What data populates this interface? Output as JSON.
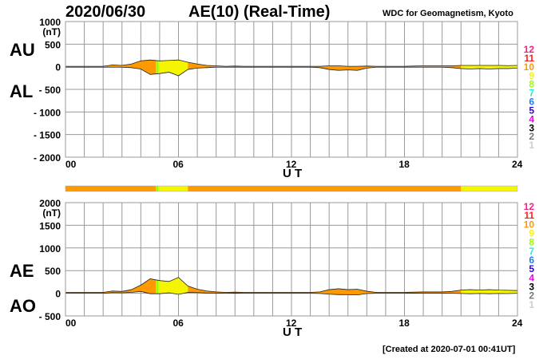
{
  "header": {
    "date": "2020/06/30",
    "title": "AE(10) (Real-Time)",
    "source": "WDC for Geomagnetism, Kyoto"
  },
  "footer": {
    "created": "[Created at 2020-07-01 00:41UT]"
  },
  "legend_levels": [
    {
      "label": "12",
      "color": "#ff1a8c"
    },
    {
      "label": "11",
      "color": "#ff2020"
    },
    {
      "label": "10",
      "color": "#ff9900"
    },
    {
      "label": "9",
      "color": "#f5f500"
    },
    {
      "label": "8",
      "color": "#99ff00"
    },
    {
      "label": "7",
      "color": "#22eedd"
    },
    {
      "label": "6",
      "color": "#1a80ff"
    },
    {
      "label": "5",
      "color": "#3300ee"
    },
    {
      "label": "4",
      "color": "#ee00ee"
    },
    {
      "label": "3",
      "color": "#000000"
    },
    {
      "label": "2",
      "color": "#777777"
    },
    {
      "label": "1",
      "color": "#cccccc"
    }
  ],
  "chart_data": [
    {
      "type": "area",
      "title": "AU / AL",
      "series_labels": [
        "AU",
        "AL"
      ],
      "xlabel": "U T",
      "ylabel": "(nT)",
      "xlim": [
        0,
        24
      ],
      "ylim": [
        -2000,
        1000
      ],
      "xticks": [
        "00",
        "06",
        "12",
        "18",
        "24"
      ],
      "yticks": [
        "1000",
        "500",
        "0",
        "- 500",
        "- 1000",
        "- 1500",
        "- 2000"
      ],
      "grid": true,
      "x_step_hours": 0.5,
      "series": [
        {
          "name": "AU",
          "values": [
            10,
            10,
            10,
            10,
            10,
            40,
            30,
            60,
            130,
            150,
            130,
            140,
            150,
            100,
            60,
            30,
            20,
            10,
            15,
            10,
            10,
            10,
            10,
            10,
            10,
            10,
            10,
            10,
            20,
            20,
            10,
            10,
            15,
            10,
            10,
            10,
            10,
            15,
            20,
            20,
            20,
            20,
            30,
            30,
            30,
            30,
            30,
            25,
            30
          ]
        },
        {
          "name": "AL",
          "values": [
            -10,
            -10,
            -10,
            -10,
            -10,
            -10,
            -10,
            -20,
            -50,
            -170,
            -150,
            -120,
            -200,
            -60,
            -30,
            -20,
            -10,
            -10,
            -10,
            -10,
            -10,
            -10,
            -10,
            -10,
            -10,
            -10,
            -10,
            -20,
            -60,
            -80,
            -70,
            -80,
            -30,
            -10,
            -10,
            -10,
            -10,
            -10,
            -10,
            -10,
            -10,
            -20,
            -40,
            -50,
            -40,
            -50,
            -40,
            -40,
            -30
          ]
        }
      ]
    },
    {
      "type": "area",
      "title": "AE / AO",
      "series_labels": [
        "AE",
        "AO"
      ],
      "xlabel": "U T",
      "ylabel": "(nT)",
      "xlim": [
        0,
        24
      ],
      "ylim": [
        -500,
        2000
      ],
      "xticks": [
        "00",
        "06",
        "12",
        "18",
        "24"
      ],
      "yticks": [
        "2000",
        "1500",
        "1000",
        "500",
        "0",
        "- 500"
      ],
      "grid": true,
      "x_step_hours": 0.5,
      "series": [
        {
          "name": "AE",
          "values": [
            20,
            20,
            20,
            20,
            20,
            50,
            40,
            80,
            180,
            320,
            280,
            260,
            350,
            160,
            90,
            50,
            30,
            20,
            25,
            20,
            20,
            20,
            20,
            20,
            20,
            20,
            20,
            30,
            80,
            100,
            80,
            90,
            45,
            20,
            20,
            20,
            20,
            25,
            30,
            30,
            30,
            40,
            70,
            80,
            70,
            80,
            70,
            65,
            60
          ]
        },
        {
          "name": "AO",
          "values": [
            0,
            0,
            0,
            0,
            0,
            15,
            10,
            20,
            40,
            -10,
            -10,
            10,
            -25,
            20,
            15,
            5,
            5,
            0,
            2.5,
            0,
            0,
            0,
            0,
            0,
            0,
            0,
            0,
            -5,
            -20,
            -30,
            -30,
            -35,
            -7.5,
            0,
            0,
            0,
            0,
            2.5,
            5,
            5,
            5,
            0,
            -5,
            -10,
            -5,
            -10,
            -5,
            -7.5,
            0
          ]
        }
      ]
    }
  ],
  "activity_segments": [
    {
      "from": 0,
      "to": 4.8,
      "level": 10,
      "color": "#ff9900"
    },
    {
      "from": 4.8,
      "to": 4.95,
      "level": 8,
      "color": "#99ff00"
    },
    {
      "from": 4.95,
      "to": 6.5,
      "level": 9,
      "color": "#f5f500"
    },
    {
      "from": 6.5,
      "to": 21,
      "level": 10,
      "color": "#ff9900"
    },
    {
      "from": 21,
      "to": 24,
      "level": 9,
      "color": "#f5f500"
    }
  ]
}
